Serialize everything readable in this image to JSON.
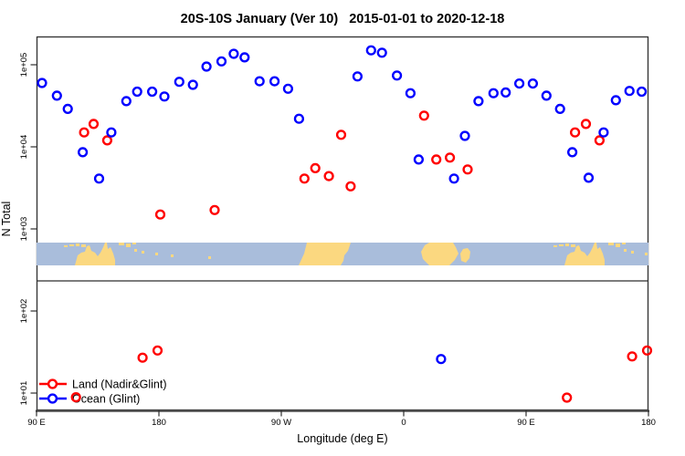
{
  "chart_data": {
    "type": "scatter",
    "title": "20S-10S January (Ver 10)   2015-01-01 to 2020-12-18",
    "xlabel": "Longitude (deg E)",
    "ylabel": "N Total",
    "y_scale": "log10",
    "ylim": [
      5.5,
      250000
    ],
    "grid": false,
    "legend_position": "bottom-left",
    "y_ticks": [
      {
        "value": 100000,
        "label": "1e+05"
      },
      {
        "value": 10000,
        "label": "1e+04"
      },
      {
        "value": 1000,
        "label": "1e+03"
      },
      {
        "value": 100,
        "label": "1e+02"
      },
      {
        "value": 10,
        "label": "1e+01"
      }
    ],
    "x_axis": {
      "start_deg": 90,
      "end_deg": 540,
      "note": "longitude axis spans 450 deg starting at 90E, wrapping past 180 through 0 back to 180",
      "ticks": [
        {
          "v": 90,
          "label": "90 E"
        },
        {
          "v": 180,
          "label": "180"
        },
        {
          "v": 270,
          "label": "90 W"
        },
        {
          "v": 360,
          "label": "0"
        },
        {
          "v": 450,
          "label": "90 E"
        },
        {
          "v": 540,
          "label": "180"
        }
      ]
    },
    "legend": {
      "items": [
        {
          "name": "Land (Nadir&Glint)",
          "color": "#ff0000"
        },
        {
          "name": "Ocean (Glint)",
          "color": "#0000ff"
        }
      ]
    },
    "series": [
      {
        "name": "Land (Nadir&Glint)",
        "color": "#ff0000",
        "points": [
          [
            119,
            8.9
          ],
          [
            125,
            15000
          ],
          [
            132,
            19000
          ],
          [
            142,
            12000
          ],
          [
            168,
            27
          ],
          [
            179,
            33
          ],
          [
            181,
            1500
          ],
          [
            221,
            1700
          ],
          [
            287,
            4100
          ],
          [
            295,
            5500
          ],
          [
            305,
            4400
          ],
          [
            314,
            14000
          ],
          [
            321,
            3300
          ],
          [
            375,
            24000
          ],
          [
            384,
            7000
          ],
          [
            394,
            7400
          ],
          [
            407,
            5300
          ],
          [
            480,
            8.8
          ],
          [
            486,
            15000
          ],
          [
            494,
            19000
          ],
          [
            504,
            12000
          ],
          [
            528,
            28
          ],
          [
            539,
            33
          ]
        ]
      },
      {
        "name": "Ocean (Glint)",
        "color": "#0000ff",
        "points": [
          [
            94,
            60000
          ],
          [
            105,
            42000
          ],
          [
            113,
            29000
          ],
          [
            124,
            8600
          ],
          [
            136,
            4100
          ],
          [
            145,
            15000
          ],
          [
            156,
            36000
          ],
          [
            164,
            47000
          ],
          [
            175,
            47000
          ],
          [
            184,
            41000
          ],
          [
            195,
            62000
          ],
          [
            205,
            57000
          ],
          [
            215,
            95000
          ],
          [
            226,
            110000
          ],
          [
            235,
            136000
          ],
          [
            243,
            123000
          ],
          [
            254,
            63000
          ],
          [
            265,
            63000
          ],
          [
            275,
            51000
          ],
          [
            283,
            22000
          ],
          [
            326,
            72000
          ],
          [
            336,
            150000
          ],
          [
            344,
            140000
          ],
          [
            355,
            74000
          ],
          [
            365,
            45000
          ],
          [
            371,
            7000
          ],
          [
            387.5,
            26
          ],
          [
            397,
            4100
          ],
          [
            405,
            13600
          ],
          [
            415,
            36000
          ],
          [
            426,
            45000
          ],
          [
            435,
            46000
          ],
          [
            445,
            59000
          ],
          [
            455,
            59000
          ],
          [
            465,
            42000
          ],
          [
            475,
            29000
          ],
          [
            484,
            8600
          ],
          [
            496,
            4200
          ],
          [
            507,
            15000
          ],
          [
            516,
            37000
          ],
          [
            526,
            48000
          ],
          [
            535,
            47000
          ]
        ]
      }
    ],
    "map_strip": {
      "description": "world land/ocean band for latitude 20S-10S",
      "ocean_color": "#a9bddb",
      "land_color": "#fbd880",
      "wrap_offsets": [
        0,
        536
      ],
      "wrap_paths": [
        "M42,25 L45,14 L49,11 L53,10 L55,4 L58,3 L60,9 L64,11 L67,15 L70,11 L73,5 L75,0 L77,0 L78,7 L81,5 L84,12 L86,19 L86,25 Z"
      ],
      "wrap_rects": [
        [
          30,
          3,
          4,
          2
        ],
        [
          36,
          2,
          5,
          2
        ],
        [
          43,
          1,
          4,
          3
        ],
        [
          49,
          2,
          5,
          3
        ],
        [
          56,
          5,
          3,
          2
        ],
        [
          90,
          0,
          6,
          3
        ],
        [
          98,
          1,
          5,
          4
        ],
        [
          105,
          0,
          4,
          2
        ],
        [
          107,
          7,
          3,
          3
        ],
        [
          115,
          9,
          3,
          3
        ],
        [
          130,
          11,
          3,
          3
        ]
      ],
      "single_paths": [
        "M287,25 L293,12 L296,0 L344,0 L341,9 L337,14 L336,20 L333,25 Z",
        "M421,10 L425,3 L430,0 L456,0 L459,5 L462,12 L458,19 L452,25 L430,25 L423,18 Z",
        "M465,20 L464,12 L467,7 L472,6 L475,10 L474,17 L470,22 Z"
      ],
      "single_rects": [
        [
          147,
          13,
          3,
          3
        ],
        [
          188,
          15,
          3,
          3
        ]
      ]
    }
  }
}
